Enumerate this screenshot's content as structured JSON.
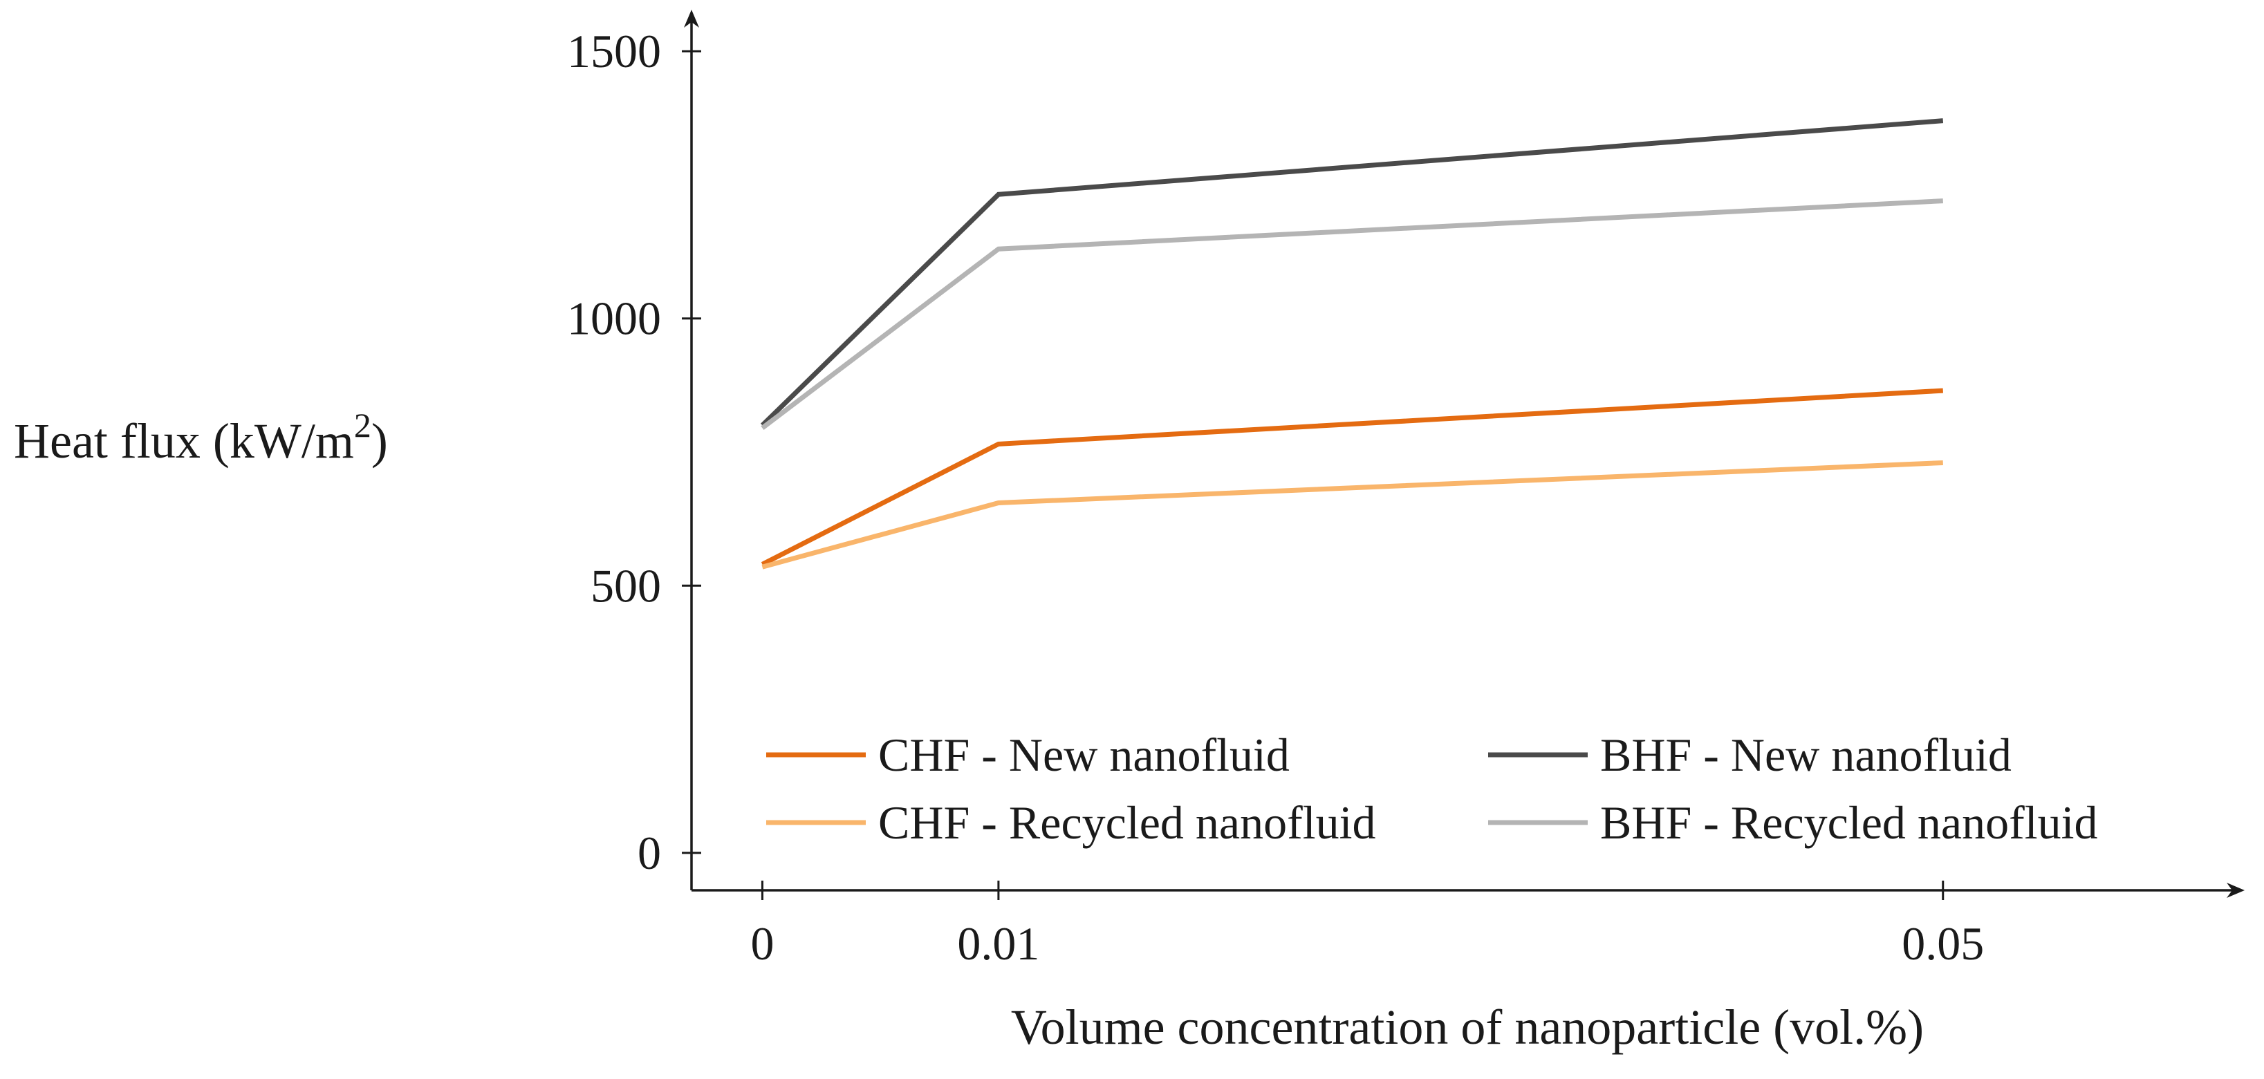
{
  "chart_data": {
    "type": "line",
    "title": "",
    "xlabel": "Volume concentration of nanoparticle (vol.%)",
    "ylabel": {
      "prefix": "Heat flux (kW/m",
      "superscript": "2",
      "suffix": ")"
    },
    "x": [
      0,
      0.01,
      0.05
    ],
    "x_tick_labels": [
      "0",
      "0.01",
      "0.05"
    ],
    "y_ticks": [
      0,
      500,
      1000,
      1500
    ],
    "y_tick_labels": [
      "0",
      "500",
      "1000",
      "1500"
    ],
    "ylim": [
      -70,
      1570
    ],
    "xlim": [
      -0.003,
      0.0626
    ],
    "grid": false,
    "legend_position": "bottom",
    "series": [
      {
        "name": "CHF - New nanofluid",
        "color": "#E46B11",
        "values": [
          540,
          765,
          865
        ]
      },
      {
        "name": "CHF - Recycled nanofluid",
        "color": "#F9B56B",
        "values": [
          535,
          655,
          730
        ]
      },
      {
        "name": "BHF - New nanofluid",
        "color": "#4A4A4A",
        "values": [
          800,
          1232,
          1370
        ]
      },
      {
        "name": "BHF - Recycled nanofluid",
        "color": "#B4B4B4",
        "values": [
          795,
          1130,
          1220
        ]
      }
    ]
  }
}
